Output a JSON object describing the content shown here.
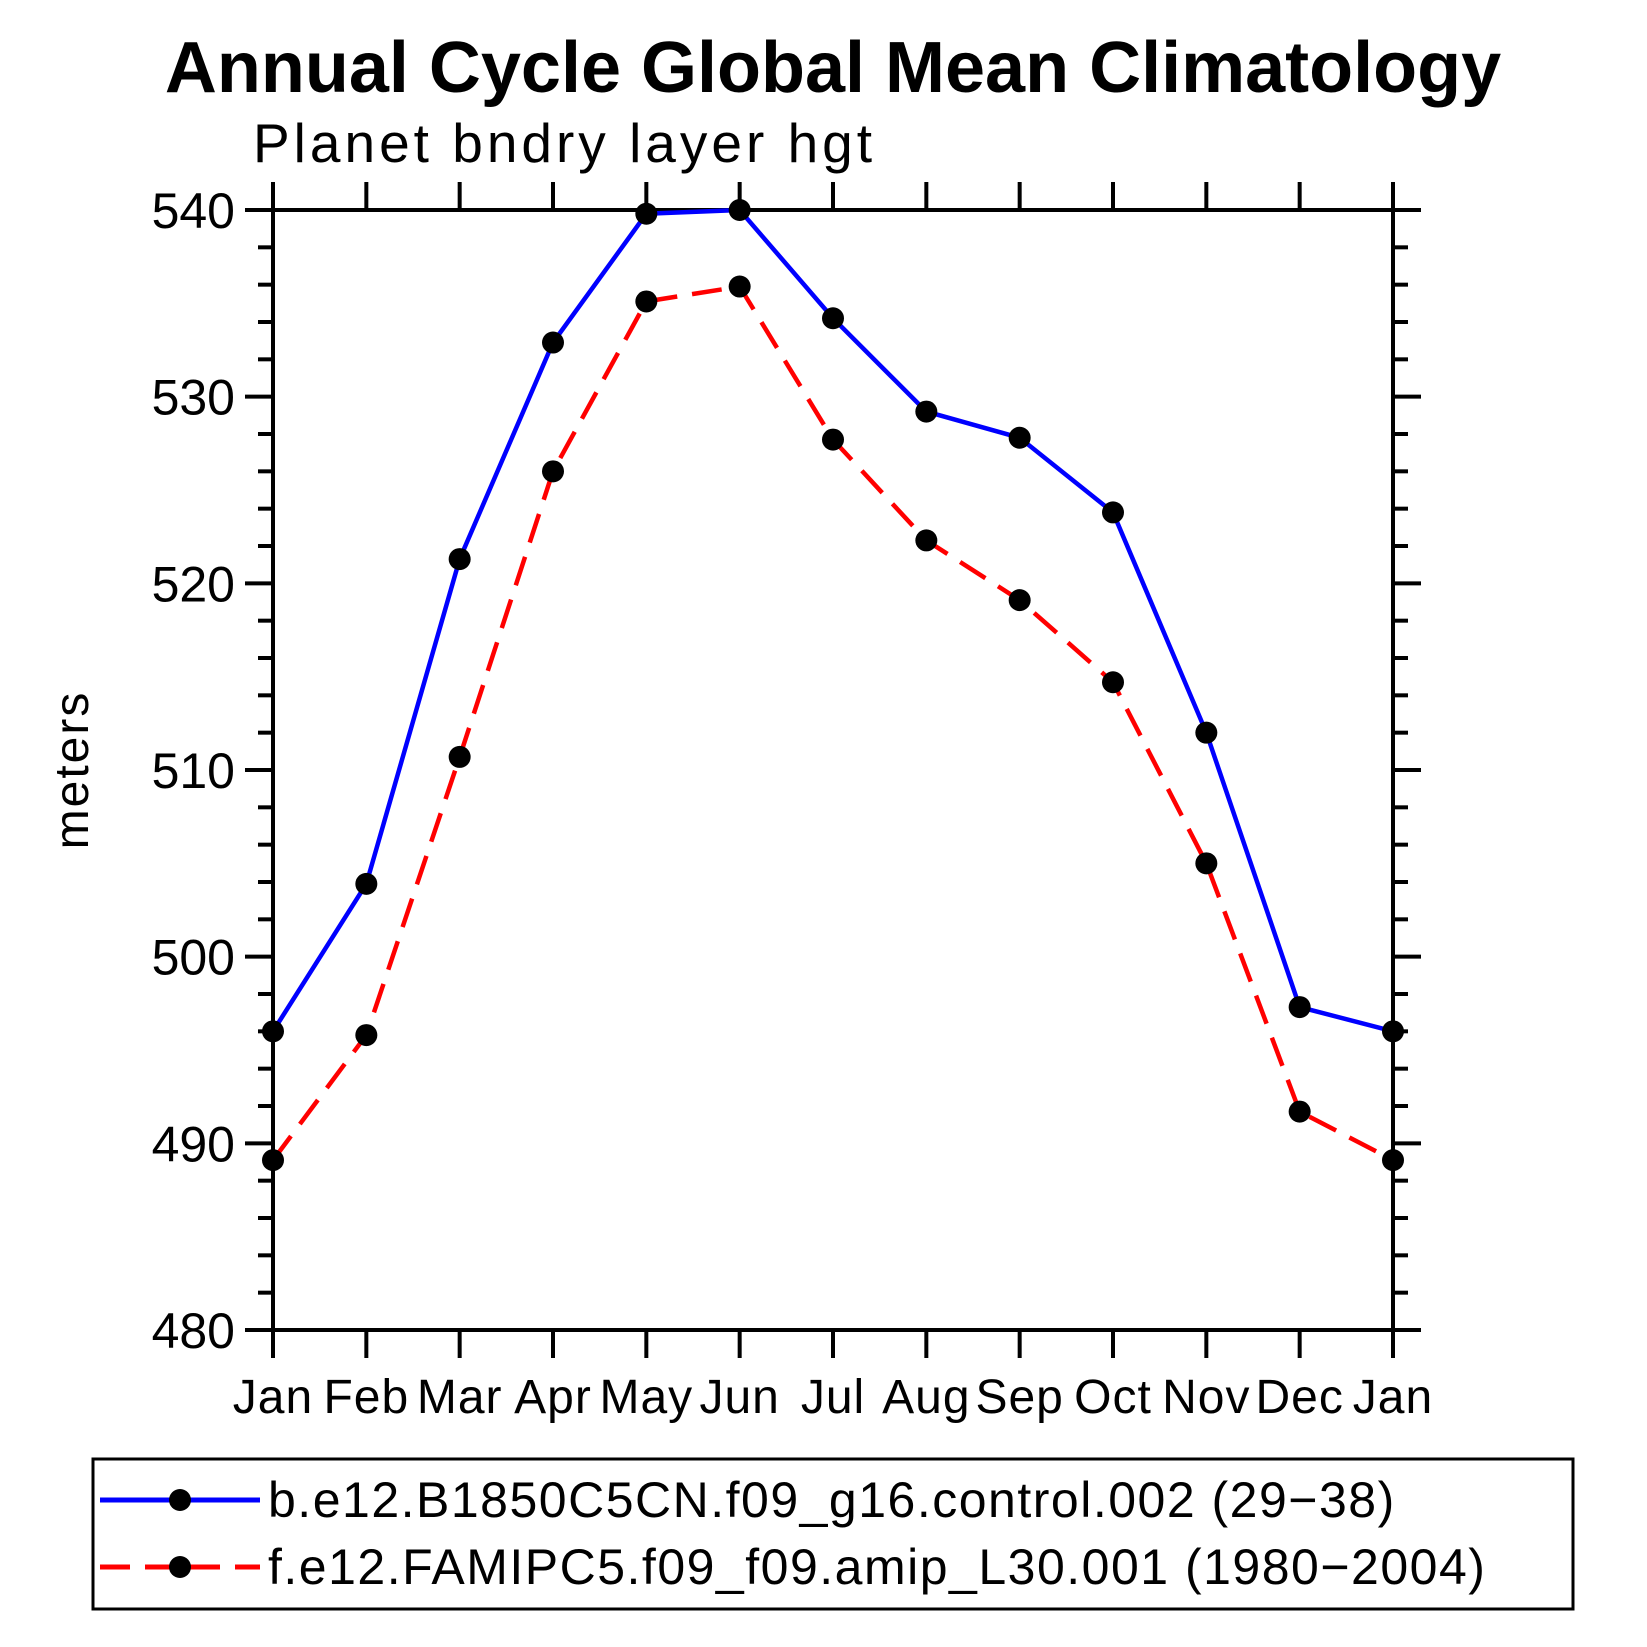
{
  "title": "Annual Cycle Global Mean Climatology",
  "subtitle": "Planet bndry layer hgt",
  "chart_data": {
    "type": "line",
    "categories": [
      "Jan",
      "Feb",
      "Mar",
      "Apr",
      "May",
      "Jun",
      "Jul",
      "Aug",
      "Sep",
      "Oct",
      "Nov",
      "Dec",
      "Jan"
    ],
    "series": [
      {
        "name": "b.e12.B1850C5CN.f09_g16.control.002 (29−38)",
        "color": "#0000ff",
        "line_style": "solid",
        "marker": "filled-circle",
        "marker_color": "#000000",
        "values": [
          496.0,
          503.9,
          521.3,
          532.9,
          539.8,
          540.0,
          534.2,
          529.2,
          527.8,
          523.8,
          512.0,
          497.3,
          496.0
        ]
      },
      {
        "name": "f.e12.FAMIPC5.f09_f09.amip_L30.001 (1980−2004)",
        "color": "#ff0000",
        "line_style": "dashed",
        "marker": "filled-circle",
        "marker_color": "#000000",
        "values": [
          489.1,
          495.8,
          510.7,
          526.0,
          535.1,
          535.9,
          527.7,
          522.3,
          519.1,
          514.7,
          505.0,
          491.7,
          489.1
        ]
      }
    ],
    "xlabel": "",
    "ylabel": "meters",
    "ylim": [
      480,
      540
    ],
    "ytick_major_interval": 10,
    "ytick_minor_interval": 2,
    "ytick_labels": [
      "480",
      "490",
      "500",
      "510",
      "520",
      "530",
      "540"
    ],
    "grid": false,
    "frame": "box-with-outward-ticks",
    "frame_color": "#000000",
    "legend_position": "bottom-left-box"
  }
}
